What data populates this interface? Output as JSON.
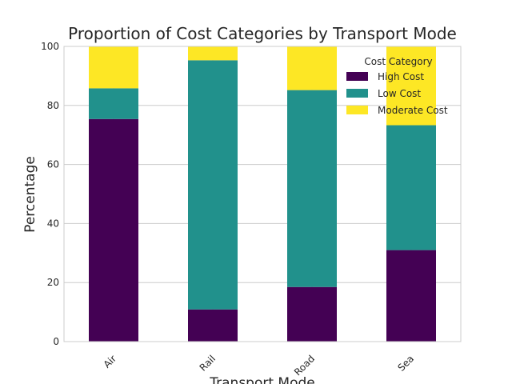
{
  "chart_data": {
    "type": "bar",
    "stacked": true,
    "title": "Proportion of Cost Categories by Transport Mode",
    "xlabel": "Transport Mode",
    "ylabel": "Percentage",
    "categories": [
      "Air",
      "Rail",
      "Road",
      "Sea"
    ],
    "ylim": [
      0,
      100
    ],
    "yticks": [
      0,
      20,
      40,
      60,
      80,
      100
    ],
    "grid": true,
    "legend": {
      "title": "Cost Category",
      "position": "top-right"
    },
    "series": [
      {
        "name": "High Cost",
        "color": "#440154",
        "values": [
          75.4,
          10.9,
          18.5,
          31.0
        ]
      },
      {
        "name": "Low Cost",
        "color": "#21918c",
        "values": [
          10.4,
          84.4,
          66.7,
          42.3
        ]
      },
      {
        "name": "Moderate Cost",
        "color": "#fde725",
        "values": [
          14.2,
          4.7,
          14.8,
          26.7
        ]
      }
    ]
  }
}
